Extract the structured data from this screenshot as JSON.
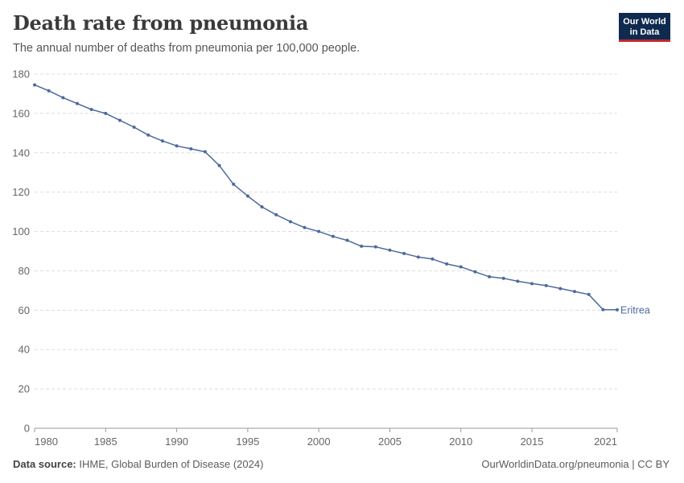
{
  "header": {
    "title": "Death rate from pneumonia",
    "subtitle": "The annual number of deaths from pneumonia per 100,000 people.",
    "logo_line1": "Our World",
    "logo_line2": "in Data"
  },
  "footer": {
    "source_label": "Data source:",
    "source_text": "IHME, Global Burden of Disease (2024)",
    "attribution": "OurWorldinData.org/pneumonia | CC BY"
  },
  "colors": {
    "series": "#4c6a9c",
    "grid": "#dddddd",
    "axis_text": "#666666"
  },
  "chart_data": {
    "type": "line",
    "title": "Death rate from pneumonia",
    "xlim": [
      1980,
      2021
    ],
    "ylim": [
      0,
      180
    ],
    "x_ticks": [
      1980,
      1985,
      1990,
      1995,
      2000,
      2005,
      2010,
      2015,
      2021
    ],
    "y_ticks": [
      0,
      20,
      40,
      60,
      80,
      100,
      120,
      140,
      160,
      180
    ],
    "grid": true,
    "legend": "inline-right",
    "series": [
      {
        "name": "Eritrea",
        "x": [
          1980,
          1981,
          1982,
          1983,
          1984,
          1985,
          1986,
          1987,
          1988,
          1989,
          1990,
          1991,
          1992,
          1993,
          1994,
          1995,
          1996,
          1997,
          1998,
          1999,
          2000,
          2001,
          2002,
          2003,
          2004,
          2005,
          2006,
          2007,
          2008,
          2009,
          2010,
          2011,
          2012,
          2013,
          2014,
          2015,
          2016,
          2017,
          2018,
          2019,
          2020,
          2021
        ],
        "y": [
          174.5,
          171.5,
          168,
          165,
          162,
          160,
          156.5,
          153,
          149,
          146,
          143.5,
          142,
          140.5,
          133.5,
          124,
          118,
          112.5,
          108.5,
          105,
          102,
          100,
          97.5,
          95.5,
          92.5,
          92.2,
          90.5,
          88.8,
          87,
          86,
          83.5,
          82,
          79.5,
          77,
          76.2,
          74.7,
          73.5,
          72.5,
          71,
          69.5,
          68,
          60.3,
          60.2
        ]
      }
    ]
  }
}
